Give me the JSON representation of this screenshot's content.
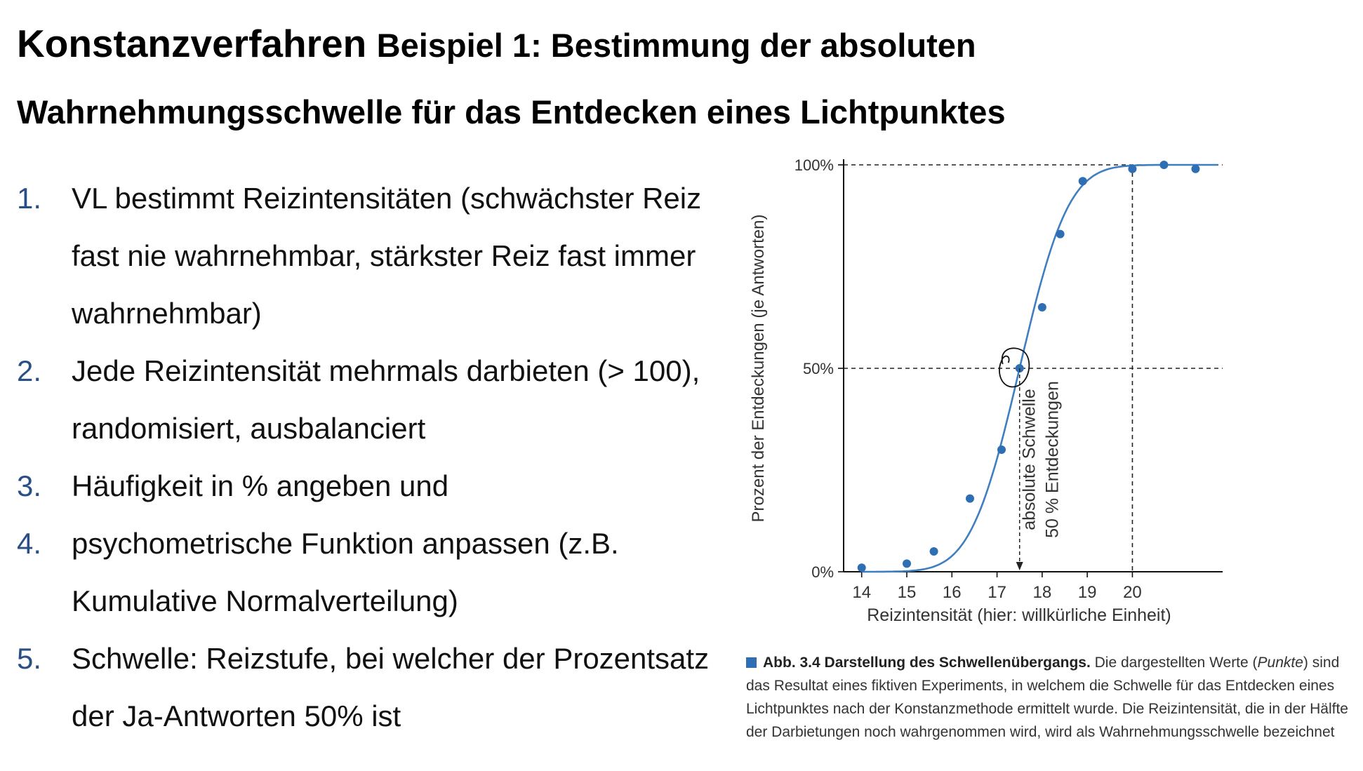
{
  "slide": {
    "title": "Konstanzverfahren",
    "subtitle_line1": "Beispiel 1: Bestimmung der absoluten",
    "subtitle_line2": "Wahrnehmungsschwelle für das Entdecken eines Lichtpunktes"
  },
  "steps": [
    {
      "num": "1.",
      "text": "VL bestimmt Reizintensitäten (schwächster Reiz fast nie wahrnehmbar, stärkster Reiz fast immer wahrnehmbar)"
    },
    {
      "num": "2.",
      "text": "Jede Reizintensität mehrmals darbieten (> 100), randomisiert, ausbalanciert"
    },
    {
      "num": "3.",
      "text": "Häufigkeit in % angeben und"
    },
    {
      "num": "4.",
      "text": "psychometrische Funktion anpassen (z.B. Kumulative Normalverteilung)"
    },
    {
      "num": "5.",
      "text": "Schwelle: Reizstufe, bei welcher der Prozentsatz der Ja-Antworten 50% ist"
    }
  ],
  "chart_data": {
    "type": "scatter",
    "title": "",
    "xlabel": "Reizintensität (hier: willkürliche Einheit)",
    "ylabel": "Prozent der Entdeckungen (je Antworten)",
    "x_ticks": [
      14,
      15,
      16,
      17,
      18,
      19,
      20
    ],
    "y_ticks": [
      "0%",
      "50%",
      "100%"
    ],
    "xlim": [
      13.6,
      22.0
    ],
    "ylim": [
      0,
      100
    ],
    "x": [
      14.0,
      15.0,
      15.6,
      16.4,
      17.1,
      17.5,
      18.0,
      18.4,
      18.9,
      20.0,
      20.7,
      21.4
    ],
    "y": [
      1,
      2,
      5,
      18,
      30,
      50,
      65,
      83,
      96,
      99,
      100,
      99
    ],
    "fit": {
      "type": "cumulative_normal",
      "mean": 17.5,
      "sd": 0.85
    },
    "threshold_x": 17.5,
    "reference_x": 20,
    "annotation_line1": "absolute Schwelle",
    "annotation_line2": "50 % Entdeckungen",
    "point_color": "#2e6fb4",
    "line_color": "#3f7fc0",
    "grid": false
  },
  "caption": {
    "label": "Abb. 3.4",
    "heading": "Darstellung des Schwellenübergangs.",
    "part1": "Die dargestellten Werte (",
    "emph": "Punkte",
    "part2": ") sind das Resultat eines fiktiven Experiments, in welchem die Schwelle für das Entdecken eines Lichtpunktes nach der Konstanzmethode ermittelt wurde. Die Reizintensität, die in der Hälfte der Darbietungen noch wahrgenommen wird, wird als Wahrnehmungsschwelle bezeichnet"
  }
}
